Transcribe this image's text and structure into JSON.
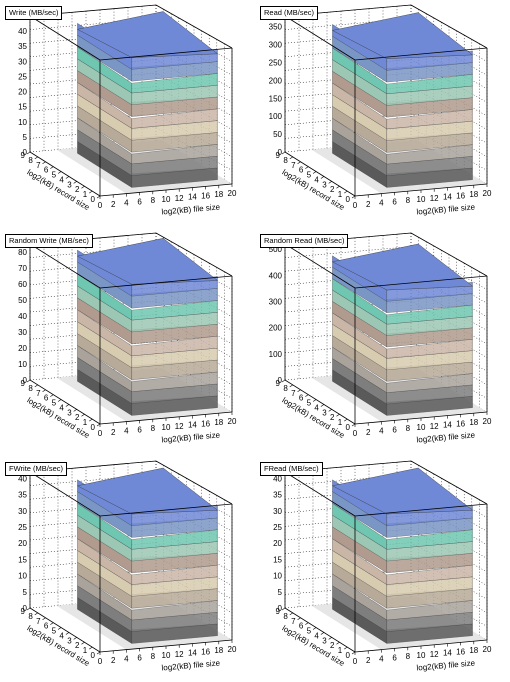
{
  "x_axis_label": "log2(kB) file size",
  "y_axis_label": "log2(kB) record size",
  "x_ticks": [
    "0",
    "2",
    "4",
    "6",
    "8",
    "10",
    "12",
    "14",
    "16",
    "18",
    "20"
  ],
  "y_ticks": [
    "0",
    "1",
    "2",
    "3",
    "4",
    "5",
    "6",
    "7",
    "8",
    "9"
  ],
  "palette": [
    "#5a5a5a",
    "#7e7e7e",
    "#a9a39b",
    "#b8aa98",
    "#d8ccb0",
    "#c9b6a6",
    "#b09b8e",
    "#9cc7b4",
    "#6fc7b1",
    "#7a96c4",
    "#6f89d6"
  ],
  "chart_data": [
    {
      "type": "surface3d",
      "title": "Write (MB/sec)",
      "xlabel": "log2(kB) file size",
      "ylabel": "log2(kB) record size",
      "xlim": [
        0,
        20
      ],
      "ylim": [
        0,
        9
      ],
      "zlim": [
        0,
        45
      ],
      "z_ticks": [
        "5",
        "10",
        "15",
        "20",
        "25",
        "30",
        "35",
        "40"
      ],
      "z_max_data": 43
    },
    {
      "type": "surface3d",
      "title": "Read (MB/sec)",
      "xlabel": "log2(kB) file size",
      "ylabel": "log2(kB) record size",
      "xlim": [
        0,
        20
      ],
      "ylim": [
        0,
        9
      ],
      "zlim": [
        0,
        380
      ],
      "z_ticks": [
        "50",
        "100",
        "150",
        "200",
        "250",
        "300",
        "350"
      ],
      "z_max_data": 360
    },
    {
      "type": "surface3d",
      "title": "Random Write (MB/sec)",
      "xlabel": "log2(kB) file size",
      "ylabel": "log2(kB) record size",
      "xlim": [
        0,
        20
      ],
      "ylim": [
        0,
        9
      ],
      "zlim": [
        0,
        85
      ],
      "z_ticks": [
        "10",
        "20",
        "30",
        "40",
        "50",
        "60",
        "70",
        "80"
      ],
      "z_max_data": 82
    },
    {
      "type": "surface3d",
      "title": "Random Read (MB/sec)",
      "xlabel": "log2(kB) file size",
      "ylabel": "log2(kB) record size",
      "xlim": [
        0,
        20
      ],
      "ylim": [
        0,
        9
      ],
      "zlim": [
        0,
        520
      ],
      "z_ticks": [
        "100",
        "200",
        "300",
        "400",
        "500"
      ],
      "z_max_data": 480
    },
    {
      "type": "surface3d",
      "title": "FWrite (MB/sec)",
      "xlabel": "log2(kB) file size",
      "ylabel": "log2(kB) record size",
      "xlim": [
        0,
        20
      ],
      "ylim": [
        0,
        9
      ],
      "zlim": [
        0,
        42
      ],
      "z_ticks": [
        "5",
        "10",
        "15",
        "20",
        "25",
        "30",
        "35",
        "40"
      ],
      "z_max_data": 40
    },
    {
      "type": "surface3d",
      "title": "FRead (MB/sec)",
      "xlabel": "log2(kB) file size",
      "ylabel": "log2(kB) record size",
      "xlim": [
        0,
        20
      ],
      "ylim": [
        0,
        9
      ],
      "zlim": [
        0,
        42
      ],
      "z_ticks": [
        "5",
        "10",
        "15",
        "20",
        "25",
        "30",
        "35",
        "40"
      ],
      "z_max_data": 40
    }
  ]
}
